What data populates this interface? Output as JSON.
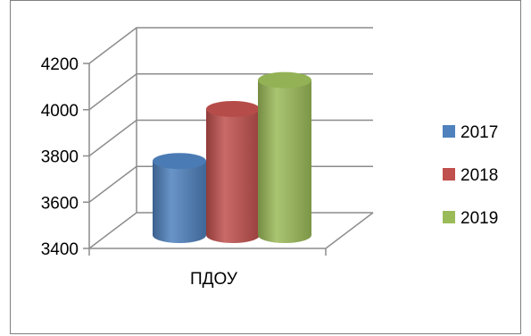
{
  "chart_data": {
    "type": "bar",
    "style": "3d-cylinder",
    "categories": [
      "ПДОУ"
    ],
    "series": [
      {
        "name": "2017",
        "values": [
          3720
        ],
        "color": "#4f81bd"
      },
      {
        "name": "2018",
        "values": [
          3945
        ],
        "color": "#c0504d"
      },
      {
        "name": "2019",
        "values": [
          4070
        ],
        "color": "#9bbb59"
      }
    ],
    "title": "",
    "xlabel": "",
    "ylabel": "",
    "ylim": [
      3400,
      4200
    ],
    "yticks": [
      "3400",
      "3600",
      "3800",
      "4000",
      "4200"
    ],
    "grid": true,
    "legend_position": "right"
  }
}
